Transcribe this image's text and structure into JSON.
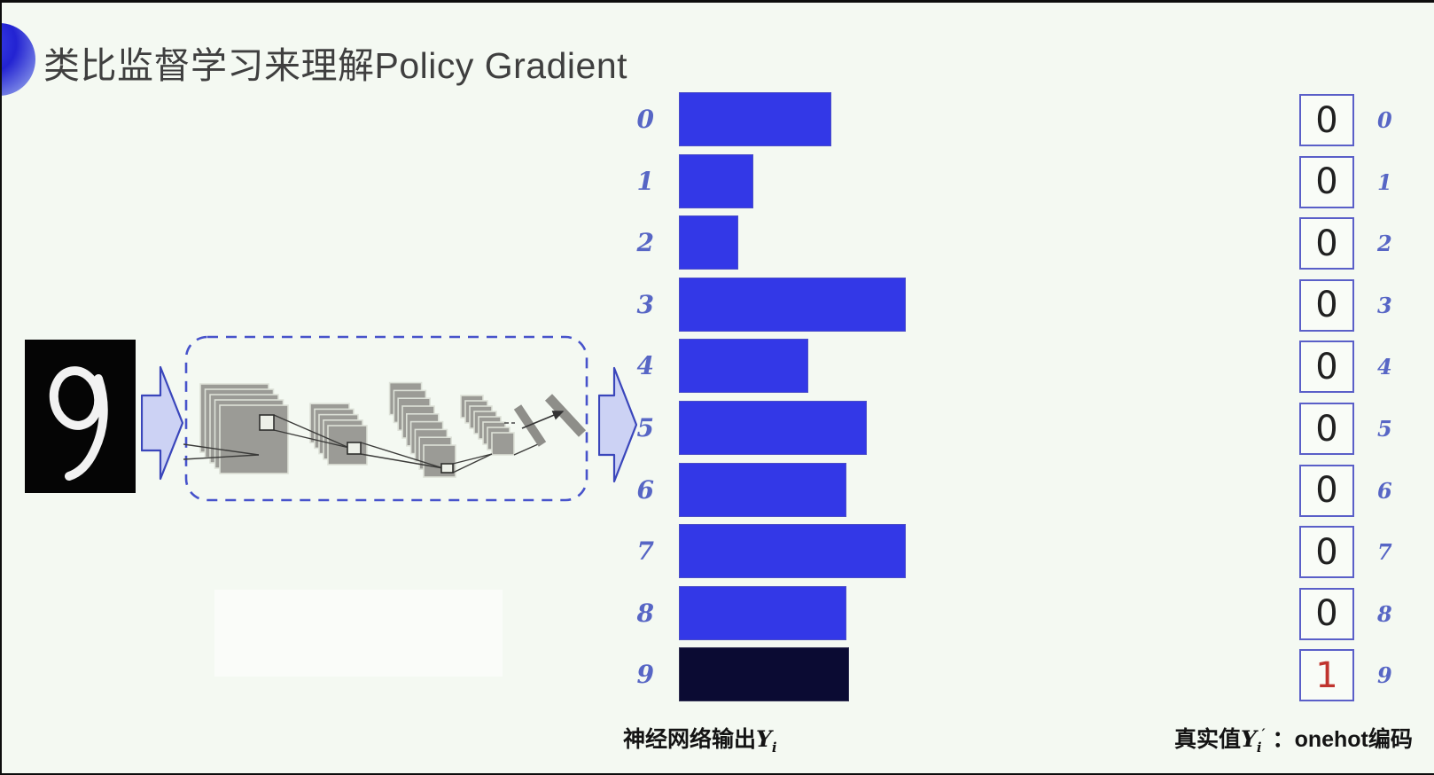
{
  "header": {
    "title": "类比监督学习来理解Policy Gradient",
    "bullet_icon": "blue-sphere-icon",
    "bullet_color": "#2323d2"
  },
  "mnist": {
    "digit": "9",
    "background": "#050505",
    "ink": "#f2f2f2"
  },
  "icons": {
    "input_arrow": "block-arrow-right",
    "output_arrow": "block-arrow-right",
    "cnn_sketch": "convolutional-network-sketch",
    "arrow_fill": "#ccd2f4",
    "arrow_stroke": "#3a46bb"
  },
  "chart_data": {
    "type": "bar",
    "orientation": "horizontal",
    "categories": [
      "0",
      "1",
      "2",
      "3",
      "4",
      "5",
      "6",
      "7",
      "8",
      "9"
    ],
    "values": [
      0.67,
      0.33,
      0.26,
      1.0,
      0.57,
      0.83,
      0.74,
      1.0,
      0.74,
      0.75
    ],
    "value_note": "relative bar widths, no numeric axis shown; max bar (classes 3 and 7) = 1.0",
    "highlight_index": 9,
    "bar_color": "#3338e7",
    "highlight_color": "#0b0b33",
    "label_color": "#5766c5",
    "grid": "off",
    "axis": "none",
    "caption": {
      "text": "神经网络输出",
      "math_base": "Y",
      "math_sub": "i"
    }
  },
  "onehot": {
    "values": [
      "0",
      "0",
      "0",
      "0",
      "0",
      "0",
      "0",
      "0",
      "0",
      "1"
    ],
    "labels": [
      "0",
      "1",
      "2",
      "3",
      "4",
      "5",
      "6",
      "7",
      "8",
      "9"
    ],
    "one_index": 9,
    "zero_color": "#202020",
    "one_color": "#c0342e",
    "box_border_color": "#5a5fc8",
    "caption": {
      "text": "真实值",
      "math_base": "Y",
      "math_sub": "i",
      "math_sup": "′",
      "colon": "：",
      "suffix": "onehot编码"
    }
  }
}
